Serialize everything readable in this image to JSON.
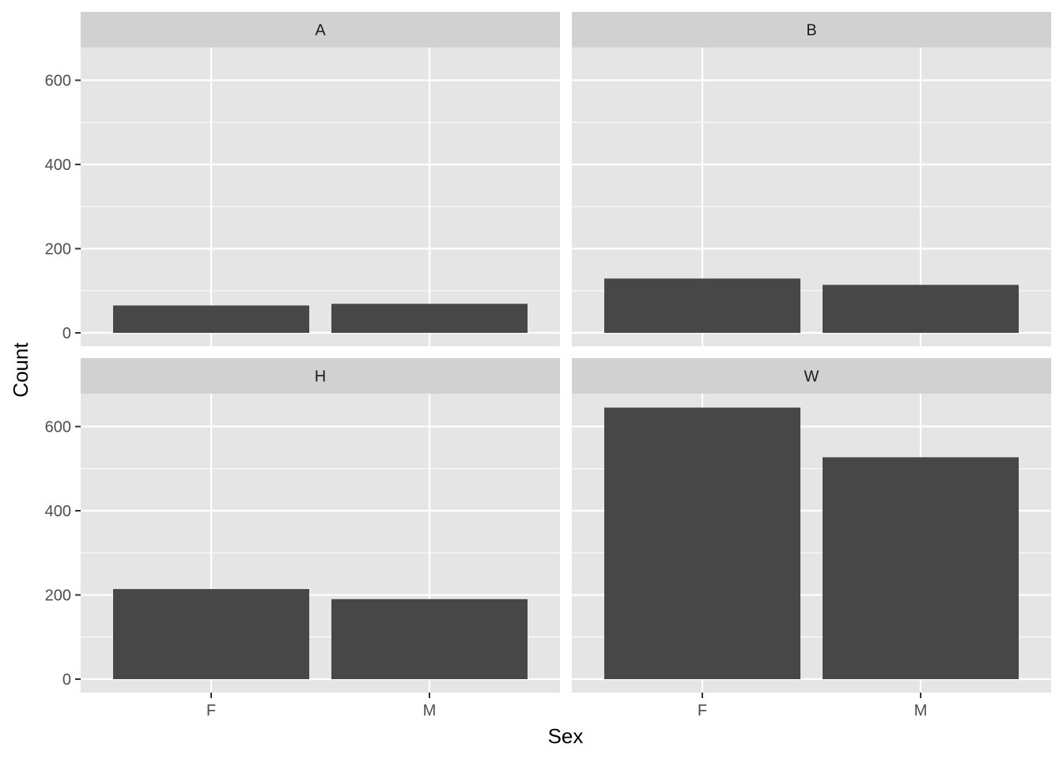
{
  "chart_data": {
    "type": "bar",
    "facet_layout": "2x2",
    "xlabel": "Sex",
    "ylabel": "Count",
    "categories": [
      "F",
      "M"
    ],
    "ylim": [
      0,
      680
    ],
    "yticks": [
      0,
      200,
      400,
      600
    ],
    "panels": [
      {
        "label": "A",
        "values": [
          65,
          69
        ]
      },
      {
        "label": "B",
        "values": [
          129,
          114
        ]
      },
      {
        "label": "H",
        "values": [
          214,
          190
        ]
      },
      {
        "label": "W",
        "values": [
          645,
          527
        ]
      }
    ],
    "colors": {
      "bar": "#474747",
      "panel_bg": "#e5e5e5",
      "strip_bg": "#d1d1d1",
      "grid": "#ffffff"
    },
    "grid": true
  }
}
